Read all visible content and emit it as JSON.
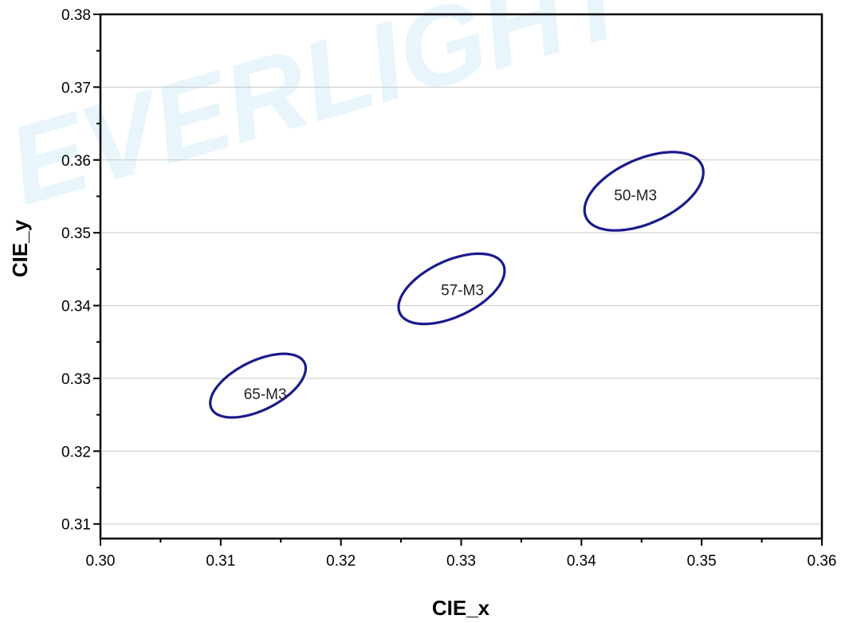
{
  "watermark": "EVERLIGHT",
  "chart_data": {
    "type": "scatter",
    "title": "",
    "xlabel": "CIE_x",
    "ylabel": "CIE_y",
    "xlim": [
      0.3,
      0.36
    ],
    "ylim": [
      0.308,
      0.38
    ],
    "x_ticks": [
      "0.30",
      "0.31",
      "0.32",
      "0.33",
      "0.34",
      "0.35",
      "0.36"
    ],
    "y_ticks": [
      "0.31",
      "0.32",
      "0.33",
      "0.34",
      "0.35",
      "0.36",
      "0.37",
      "0.38"
    ],
    "grid": true,
    "line_color": "#1a1a8c",
    "series": [
      {
        "name": "65-M3",
        "center": [
          0.3131,
          0.329
        ],
        "a": 0.0052,
        "b": 0.0028,
        "angle_deg": 50,
        "label_at": [
          0.3137,
          0.3279
        ]
      },
      {
        "name": "57-M3",
        "center": [
          0.3292,
          0.3423
        ],
        "a": 0.0057,
        "b": 0.0032,
        "angle_deg": 50,
        "label_at": [
          0.3301,
          0.3422
        ]
      },
      {
        "name": "50-M3",
        "center": [
          0.3452,
          0.3557
        ],
        "a": 0.0063,
        "b": 0.0037,
        "angle_deg": 50,
        "label_at": [
          0.3445,
          0.3552
        ]
      }
    ]
  }
}
